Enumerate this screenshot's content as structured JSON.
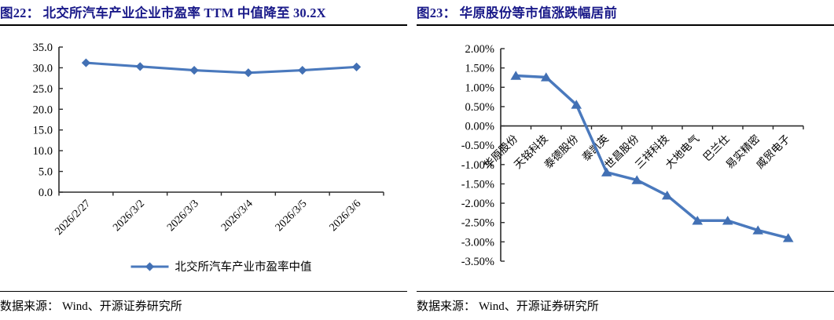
{
  "panels": [
    {
      "id": "figure-22"
    },
    {
      "id": "figure-23"
    }
  ],
  "source": {
    "label": "数据来源：",
    "text": "Wind、开源证券研究所"
  },
  "colors": {
    "title_navy": "#191989",
    "line_blue": "#4a79bd",
    "marker_blue": "#4270b4",
    "axis": "#2b2b2b"
  },
  "chart_data": [
    {
      "type": "line",
      "title": "图22： 北交所汽车产业企业市盈率 TTM 中值降至 30.2X",
      "categories": [
        "2026/2/27",
        "2026/3/2",
        "2026/3/3",
        "2026/3/4",
        "2026/3/5",
        "2026/3/6"
      ],
      "series": [
        {
          "name": "北交所汽车产业市盈率中值",
          "values": [
            31.2,
            30.3,
            29.4,
            28.8,
            29.4,
            30.2
          ]
        }
      ],
      "xlabel": "",
      "ylabel": "",
      "ylim": [
        0,
        35
      ],
      "ytick_step": 5,
      "ytick_format": "one_decimal",
      "x_axis_at": "min",
      "marker": "diamond",
      "grid": false,
      "legend_position": "bottom"
    },
    {
      "type": "line",
      "title": "图23： 华原股份等市值涨跌幅居前",
      "categories": [
        "华原股份",
        "天铭科技",
        "泰德股份",
        "泰凯英",
        "世昌股份",
        "三祥科技",
        "大地电气",
        "巴兰仕",
        "易实精密",
        "威贸电子"
      ],
      "series": [
        {
          "name": "市值涨跌幅",
          "values": [
            1.3,
            1.26,
            0.55,
            -1.2,
            -1.4,
            -1.8,
            -2.45,
            -2.45,
            -2.7,
            -2.9
          ]
        }
      ],
      "xlabel": "",
      "ylabel": "",
      "ylim": [
        -3.5,
        2.0
      ],
      "ytick_step": 0.5,
      "ytick_format": "percent_two_decimal",
      "x_axis_at": "zero",
      "marker": "triangle",
      "grid": false,
      "legend_position": "none"
    }
  ]
}
